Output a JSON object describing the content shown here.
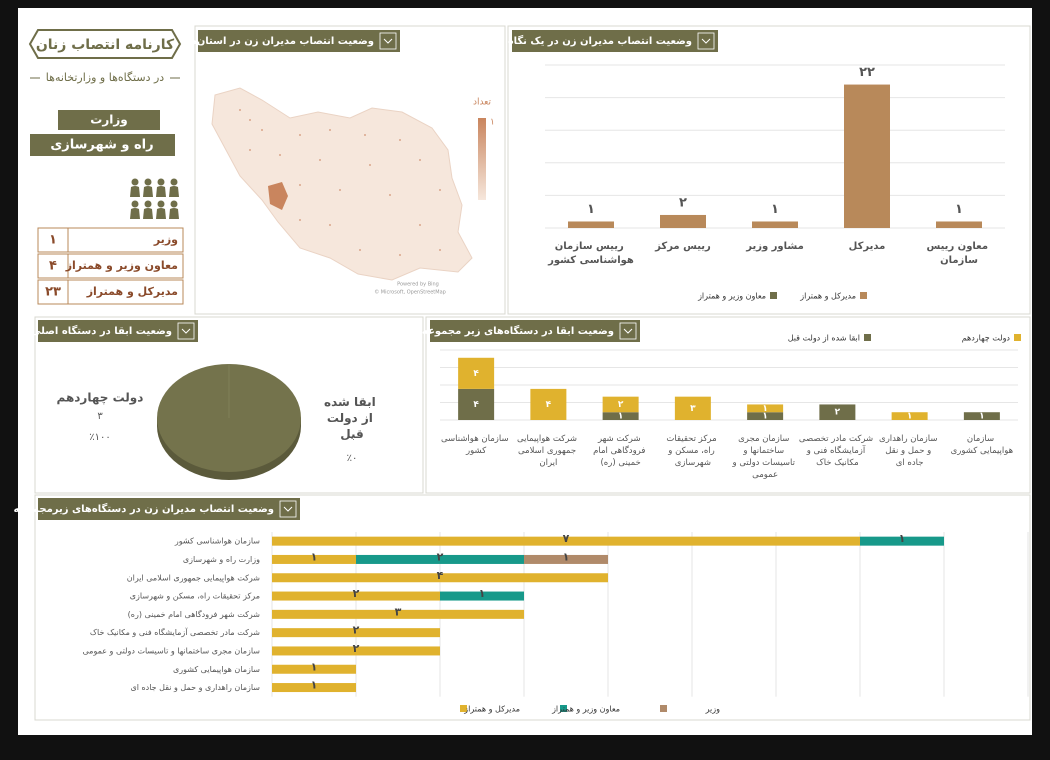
{
  "header": {
    "title": "کارنامه انتصاب زنان",
    "subtitle": "در دستگاه‌ها و وزارتخانه‌ها",
    "ministry_label": "وزارت",
    "ministry": "راه و شهرسازی"
  },
  "summary_table": {
    "rows": [
      [
        "وزیر",
        "۱"
      ],
      [
        "معاون وزیر و همتراز",
        "۴"
      ],
      [
        "مدیرکل و همتراز",
        "۲۳"
      ]
    ]
  },
  "map": {
    "title": "وضعیت انتصاب مدیران زن در استان‌ها",
    "legend_title": "تعداد",
    "legend_max": "۱",
    "credit": [
      "Powered by Bing",
      "© Microsoft, OpenStreetMap"
    ]
  },
  "chart_data": [
    {
      "type": "bar",
      "title": "وضعیت انتصاب مدیران زن در یک نگاه",
      "categories": [
        "رییس سازمان هواشناسی کشور",
        "رییس مرکز",
        "مشاور وزیر",
        "مدیرکل",
        "معاون رییس سازمان"
      ],
      "values": [
        1,
        2,
        1,
        22,
        1
      ],
      "value_labels": [
        "۱",
        "۲",
        "۱",
        "۲۲",
        "۱"
      ],
      "color": "#b8895a",
      "ylim": [
        0,
        25
      ],
      "legend": [
        {
          "name": "مدیرکل و همتراز",
          "color": "#b8895a"
        },
        {
          "name": "معاون وزیر و همتراز",
          "color": "#6f6e49"
        }
      ]
    },
    {
      "type": "pie",
      "title": "وضعیت ابقا در دستگاه اصلی",
      "categories": [
        "دولت چهاردهم",
        "ابقا شده از دولت قبل"
      ],
      "values": [
        100,
        0
      ],
      "value_labels": [
        "٪۱۰۰",
        "٪۰"
      ],
      "counts": [
        3,
        0
      ],
      "count_labels": [
        "۳",
        "۰"
      ],
      "colors": [
        "#74734c",
        "#e0b22e"
      ]
    },
    {
      "type": "stacked_bar",
      "title": "وضعیت ابقا در دستگاه‌های زیر مجموعه",
      "categories": [
        "سازمان هواشناسی کشور",
        "شرکت هواپیمایی جمهوری اسلامی ایران",
        "شرکت شهر فرودگاهی امام خمینی (ره)",
        "مرکز تحقیقات راه، مسکن و شهرسازی",
        "سازمان مجری ساختمانها و تاسیسات دولتی و عمومی",
        "شرکت مادر تخصصی آزمایشگاه فنی و مکانیک خاک",
        "سازمان راهداری و حمل و نقل جاده ای",
        "سازمان هواپیمایی کشوری"
      ],
      "series": [
        {
          "name": "ابقا شده از دولت قبل",
          "color": "#6f6e49",
          "values": [
            4,
            null,
            1,
            null,
            1,
            2,
            null,
            1
          ],
          "value_labels": [
            "۴",
            null,
            "۱",
            null,
            "۱",
            "۲",
            null,
            "۱"
          ]
        },
        {
          "name": "دولت چهاردهم",
          "color": "#e0b22e",
          "values": [
            4,
            4,
            2,
            3,
            1,
            null,
            1,
            null
          ],
          "value_labels": [
            "۴",
            "۴",
            "۲",
            "۳",
            "۱",
            null,
            "۱",
            null
          ]
        }
      ],
      "ylim": [
        0,
        9
      ]
    },
    {
      "type": "hbar_stacked",
      "title": "وضعیت انتصاب مدیران زن در دستگاه‌های زیرمجموعه",
      "categories": [
        "سازمان هواشناسی کشور",
        "وزارت راه و شهرسازی",
        "شرکت هواپیمایی جمهوری اسلامی ایران",
        "مرکز تحقیقات راه، مسکن و شهرسازی",
        "شرکت شهر فرودگاهی امام خمینی (ره)",
        "شرکت مادر تخصصی آزمایشگاه فنی و مکانیک خاک",
        "سازمان مجری ساختمانها و تاسیسات دولتی و عمومی",
        "سازمان هواپیمایی کشوری",
        "سازمان راهداری و حمل و نقل جاده ای"
      ],
      "series": [
        {
          "name": "مدیرکل و همتراز",
          "color": "#e0b22e",
          "values": [
            7,
            1,
            4,
            2,
            3,
            2,
            2,
            1,
            1
          ],
          "value_labels": [
            "۷",
            "۱",
            "۴",
            "۲",
            "۳",
            "۲",
            "۲",
            "۱",
            "۱"
          ]
        },
        {
          "name": "معاون وزیر و همتراز",
          "color": "#17998a",
          "values": [
            1,
            2,
            null,
            1,
            null,
            null,
            null,
            null,
            null
          ],
          "value_labels": [
            "۱",
            "۲",
            null,
            "۱",
            null,
            null,
            null,
            null,
            null
          ]
        },
        {
          "name": "وزیر",
          "color": "#b08a6a",
          "values": [
            null,
            1,
            null,
            null,
            null,
            null,
            null,
            null,
            null
          ],
          "value_labels": [
            null,
            "۱",
            null,
            null,
            null,
            null,
            null,
            null,
            null
          ]
        }
      ],
      "xlim": [
        0,
        9
      ]
    }
  ]
}
